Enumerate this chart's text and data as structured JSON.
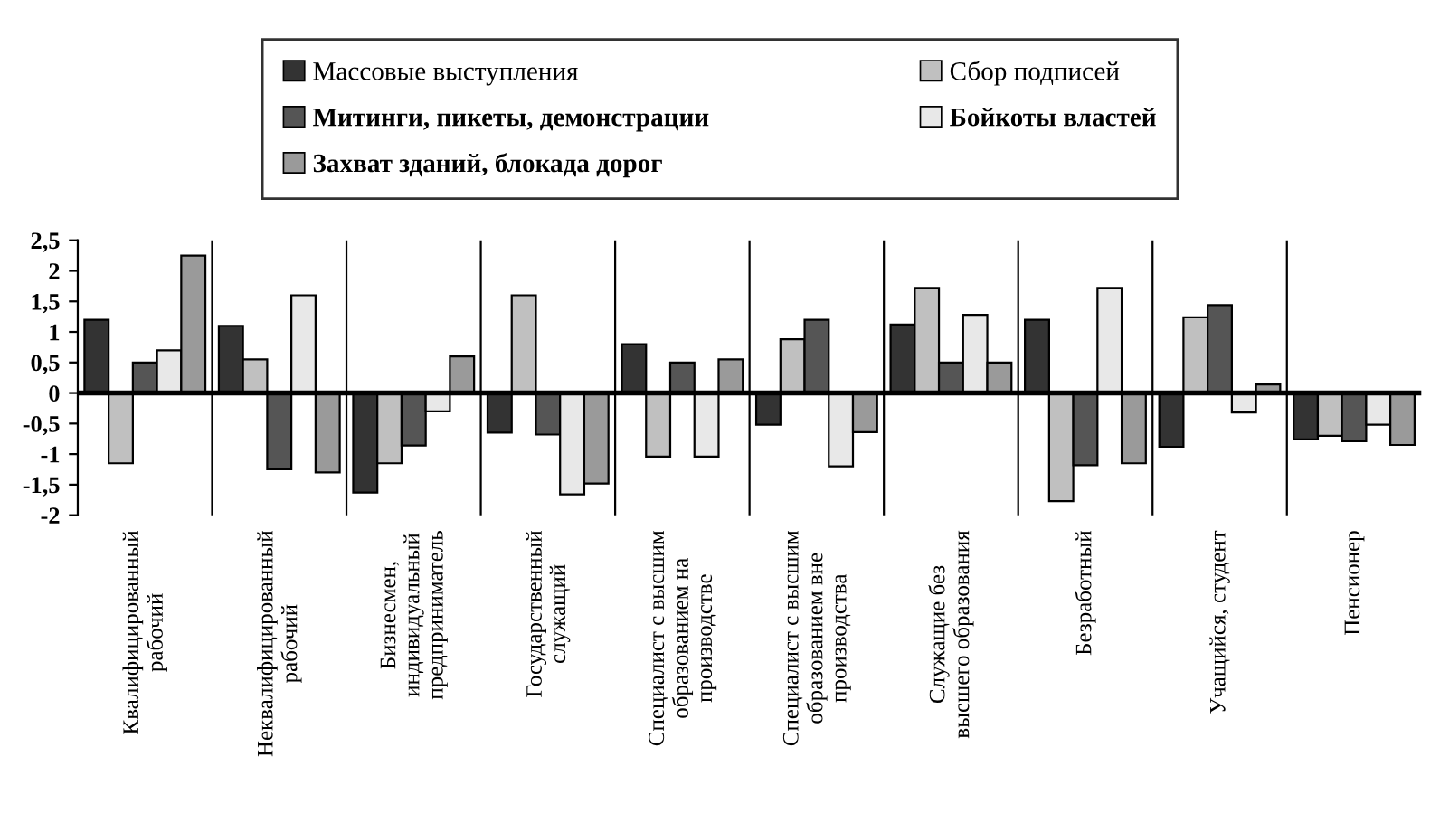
{
  "chart_data": {
    "type": "bar",
    "categories": [
      "Квалифицированный\nрабочий",
      "Неквалифицированный\nрабочий",
      "Бизнесмен,\nиндивидуальный\nпредприниматель",
      "Государственный\nслужащий",
      "Специалист с высшим\nобразованием на\nпроизводстве",
      "Специалист с высшим\nобразованием вне\nпроизводства",
      "Служащие без\nвысшего образования",
      "Безработный",
      "Учащийся, студент",
      "Пенсионер"
    ],
    "series": [
      {
        "name": "Массовые выступления",
        "color": "#333333",
        "values": [
          1.2,
          1.1,
          -1.63,
          -0.65,
          0.8,
          -0.52,
          1.12,
          1.2,
          -0.88,
          -0.76
        ]
      },
      {
        "name": "Сбор подписей",
        "color": "#c0c0c0",
        "values": [
          -1.15,
          0.55,
          -1.15,
          1.6,
          -1.04,
          0.88,
          1.72,
          -1.77,
          1.24,
          -0.7
        ]
      },
      {
        "name": "Митинги, пикеты, демонстрации",
        "color": "#555555",
        "values": [
          0.5,
          -1.25,
          -0.86,
          -0.68,
          0.5,
          1.2,
          0.5,
          -1.18,
          1.44,
          -0.79
        ]
      },
      {
        "name": "Бойкоты властей",
        "color": "#e8e8e8",
        "values": [
          0.7,
          1.6,
          -0.3,
          -1.66,
          -1.04,
          -1.2,
          1.28,
          1.72,
          -0.32,
          -0.52
        ]
      },
      {
        "name": "Захват зданий, блокада дорог",
        "color": "#9a9a9a",
        "values": [
          2.25,
          -1.3,
          0.6,
          -1.48,
          0.55,
          -0.64,
          0.5,
          -1.15,
          0.14,
          -0.85
        ]
      }
    ],
    "ylim": [
      -2,
      2.5
    ],
    "yticks": [
      {
        "value": -2,
        "label": "-2"
      },
      {
        "value": -1.5,
        "label": "-1,5"
      },
      {
        "value": -1,
        "label": "-1"
      },
      {
        "value": -0.5,
        "label": "-0,5"
      },
      {
        "value": 0,
        "label": "0"
      },
      {
        "value": 0.5,
        "label": "0,5"
      },
      {
        "value": 1,
        "label": "1"
      },
      {
        "value": 1.5,
        "label": "1,5"
      },
      {
        "value": 2,
        "label": "2"
      },
      {
        "value": 2.5,
        "label": "2,5"
      }
    ],
    "grid": false,
    "legend": "top"
  }
}
